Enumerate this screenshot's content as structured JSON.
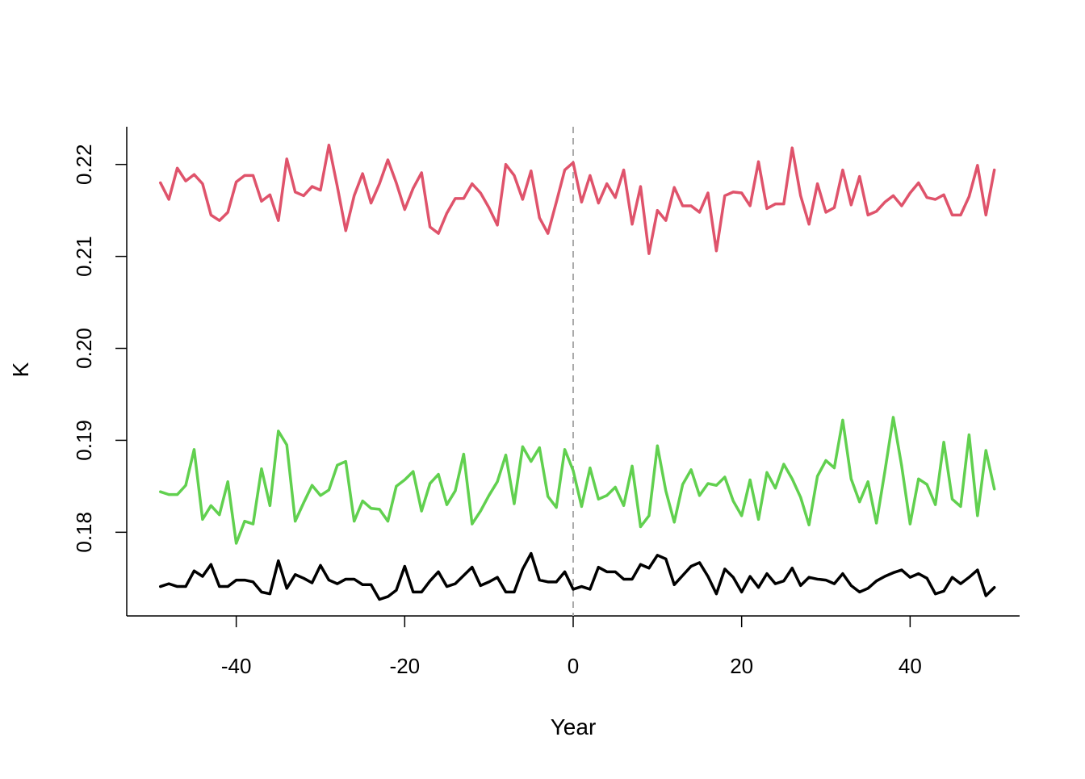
{
  "chart_data": {
    "type": "line",
    "xlabel": "Year",
    "ylabel": "K",
    "xlim": [
      -53,
      53
    ],
    "ylim": [
      0.1709,
      0.2241
    ],
    "x_ticks": [
      -40,
      -20,
      0,
      20,
      40
    ],
    "x_tick_labels": [
      "-40",
      "-20",
      "0",
      "20",
      "40"
    ],
    "y_ticks": [
      0.18,
      0.19,
      0.2,
      0.21,
      0.22
    ],
    "y_tick_labels": [
      "0.18",
      "0.19",
      "0.20",
      "0.21",
      "0.22"
    ],
    "reference_line": {
      "x": 0,
      "style": "dashed",
      "color": "#aaaaaa"
    },
    "grid": false,
    "x": [
      -49,
      -48,
      -47,
      -46,
      -45,
      -44,
      -43,
      -42,
      -41,
      -40,
      -39,
      -38,
      -37,
      -36,
      -35,
      -34,
      -33,
      -32,
      -31,
      -30,
      -29,
      -28,
      -27,
      -26,
      -25,
      -24,
      -23,
      -22,
      -21,
      -20,
      -19,
      -18,
      -17,
      -16,
      -15,
      -14,
      -13,
      -12,
      -11,
      -10,
      -9,
      -8,
      -7,
      -6,
      -5,
      -4,
      -3,
      -2,
      -1,
      0,
      1,
      2,
      3,
      4,
      5,
      6,
      7,
      8,
      9,
      10,
      11,
      12,
      13,
      14,
      15,
      16,
      17,
      18,
      19,
      20,
      21,
      22,
      23,
      24,
      25,
      26,
      27,
      28,
      29,
      30,
      31,
      32,
      33,
      34,
      35,
      36,
      37,
      38,
      39,
      40,
      41,
      42,
      43,
      44,
      45,
      46,
      47,
      48,
      49,
      50
    ],
    "series": [
      {
        "color": "#DF536B",
        "values": [
          0.218,
          0.2162,
          0.2196,
          0.2182,
          0.2189,
          0.2179,
          0.2145,
          0.2139,
          0.2148,
          0.2181,
          0.2188,
          0.2188,
          0.216,
          0.2167,
          0.2139,
          0.2206,
          0.217,
          0.2166,
          0.2176,
          0.2172,
          0.2221,
          0.2176,
          0.2128,
          0.2166,
          0.219,
          0.2158,
          0.2179,
          0.2205,
          0.218,
          0.2151,
          0.2174,
          0.2191,
          0.2132,
          0.2125,
          0.2147,
          0.2163,
          0.2163,
          0.2179,
          0.2169,
          0.2153,
          0.2134,
          0.22,
          0.2188,
          0.2162,
          0.2193,
          0.2142,
          0.2125,
          0.2159,
          0.2194,
          0.2202,
          0.2159,
          0.2188,
          0.2158,
          0.2179,
          0.2164,
          0.2194,
          0.2135,
          0.2176,
          0.2103,
          0.215,
          0.2139,
          0.2175,
          0.2155,
          0.2155,
          0.2148,
          0.2169,
          0.2106,
          0.2166,
          0.217,
          0.2169,
          0.2155,
          0.2203,
          0.2152,
          0.2157,
          0.2157,
          0.2218,
          0.2166,
          0.2135,
          0.2179,
          0.2148,
          0.2153,
          0.2194,
          0.2156,
          0.2187,
          0.2145,
          0.2149,
          0.2159,
          0.2166,
          0.2155,
          0.2169,
          0.218,
          0.2164,
          0.2162,
          0.2167,
          0.2145,
          0.2145,
          0.2165,
          0.2199,
          0.2145,
          0.2194
        ]
      },
      {
        "color": "#61D04F",
        "values": [
          0.1844,
          0.1841,
          0.1841,
          0.1851,
          0.189,
          0.1814,
          0.1829,
          0.1819,
          0.1855,
          0.1788,
          0.1812,
          0.1809,
          0.1869,
          0.1829,
          0.191,
          0.1895,
          0.1812,
          0.1832,
          0.1851,
          0.184,
          0.1846,
          0.1873,
          0.1877,
          0.1812,
          0.1834,
          0.1826,
          0.1825,
          0.1812,
          0.185,
          0.1857,
          0.1866,
          0.1823,
          0.1853,
          0.1863,
          0.183,
          0.1845,
          0.1885,
          0.1809,
          0.1823,
          0.184,
          0.1855,
          0.1884,
          0.1831,
          0.1893,
          0.1877,
          0.1892,
          0.1839,
          0.1827,
          0.189,
          0.1867,
          0.1828,
          0.187,
          0.1836,
          0.184,
          0.1849,
          0.1829,
          0.1872,
          0.1806,
          0.1818,
          0.1894,
          0.1845,
          0.1811,
          0.1852,
          0.1868,
          0.184,
          0.1853,
          0.1851,
          0.186,
          0.1834,
          0.1818,
          0.1857,
          0.1814,
          0.1865,
          0.1848,
          0.1874,
          0.1858,
          0.1838,
          0.1808,
          0.1861,
          0.1878,
          0.187,
          0.1922,
          0.1858,
          0.1833,
          0.1855,
          0.181,
          0.1866,
          0.1925,
          0.1872,
          0.1809,
          0.1858,
          0.1852,
          0.183,
          0.1898,
          0.1836,
          0.1828,
          0.1906,
          0.1818,
          0.1889,
          0.1847
        ]
      },
      {
        "color": "#000000",
        "values": [
          0.1741,
          0.1744,
          0.1741,
          0.1741,
          0.1758,
          0.1752,
          0.1765,
          0.1741,
          0.1741,
          0.1748,
          0.1748,
          0.1746,
          0.1735,
          0.1733,
          0.1769,
          0.1739,
          0.1754,
          0.175,
          0.1745,
          0.1764,
          0.1748,
          0.1744,
          0.1749,
          0.1749,
          0.1743,
          0.1743,
          0.1727,
          0.173,
          0.1737,
          0.1763,
          0.1735,
          0.1735,
          0.1747,
          0.1757,
          0.1741,
          0.1744,
          0.1753,
          0.1762,
          0.1742,
          0.1746,
          0.1751,
          0.1735,
          0.1735,
          0.176,
          0.1777,
          0.1748,
          0.1746,
          0.1746,
          0.1757,
          0.1738,
          0.1741,
          0.1738,
          0.1762,
          0.1757,
          0.1757,
          0.1749,
          0.1749,
          0.1765,
          0.1761,
          0.1775,
          0.1771,
          0.1743,
          0.1753,
          0.1763,
          0.1767,
          0.1752,
          0.1733,
          0.176,
          0.1751,
          0.1735,
          0.1752,
          0.174,
          0.1755,
          0.1744,
          0.1747,
          0.1761,
          0.1742,
          0.1751,
          0.1749,
          0.1748,
          0.1744,
          0.1755,
          0.1742,
          0.1735,
          0.1739,
          0.1747,
          0.1752,
          0.1756,
          0.1759,
          0.1751,
          0.1755,
          0.175,
          0.1733,
          0.1736,
          0.1751,
          0.1744,
          0.1751,
          0.1759,
          0.1731,
          0.174
        ]
      }
    ]
  }
}
